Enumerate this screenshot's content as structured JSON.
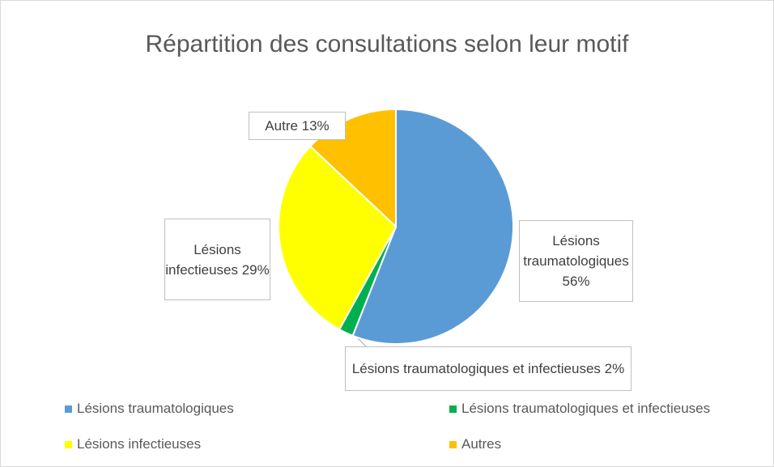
{
  "chart_data": {
    "type": "pie",
    "title": "Répartition des consultations selon leur motif",
    "categories": [
      "Lésions traumatologiques",
      "Lésions traumatologiques et infectieuses",
      "Lésions infectieuses",
      "Autres"
    ],
    "values": [
      56,
      2,
      29,
      13
    ],
    "value_labels": [
      "Lésions traumatologiques 56%",
      "Lésions traumatologiques et infectieuses 2%",
      "Lésions infectieuses 29%",
      "Autre 13%"
    ],
    "colors": [
      "#5b9bd5",
      "#00b050",
      "#ffff00",
      "#ffc000"
    ],
    "legend": "bottom"
  }
}
